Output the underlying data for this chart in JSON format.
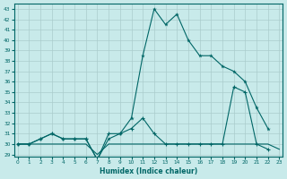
{
  "title": "",
  "xlabel": "Humidex (Indice chaleur)",
  "ylabel": "",
  "background_color": "#c8eaea",
  "line_color": "#006666",
  "grid_color": "#aacccc",
  "x_values": [
    0,
    1,
    2,
    3,
    4,
    5,
    6,
    7,
    8,
    9,
    10,
    11,
    12,
    13,
    14,
    15,
    16,
    17,
    18,
    19,
    20,
    21,
    22,
    23
  ],
  "series1": [
    30.0,
    30.0,
    30.5,
    31.0,
    30.5,
    30.5,
    30.5,
    28.5,
    30.5,
    31.0,
    32.5,
    38.5,
    43.0,
    41.5,
    42.5,
    40.0,
    38.5,
    38.5,
    37.5,
    37.0,
    36.0,
    33.5,
    31.5,
    null
  ],
  "series2": [
    30.0,
    30.0,
    30.5,
    31.0,
    30.5,
    30.5,
    30.5,
    28.5,
    31.0,
    31.0,
    31.5,
    32.5,
    31.0,
    30.0,
    30.0,
    30.0,
    30.0,
    30.0,
    30.0,
    35.5,
    35.0,
    30.0,
    29.5,
    null
  ],
  "series3": [
    30.0,
    30.0,
    30.0,
    30.0,
    30.0,
    30.0,
    30.0,
    29.0,
    30.0,
    30.0,
    30.0,
    30.0,
    30.0,
    30.0,
    30.0,
    30.0,
    30.0,
    30.0,
    30.0,
    30.0,
    30.0,
    30.0,
    30.0,
    29.5
  ],
  "ylim": [
    28.8,
    43.5
  ],
  "xlim": [
    -0.3,
    23.3
  ],
  "yticks": [
    29,
    30,
    31,
    32,
    33,
    34,
    35,
    36,
    37,
    38,
    39,
    40,
    41,
    42,
    43
  ],
  "xticks": [
    0,
    1,
    2,
    3,
    4,
    5,
    6,
    7,
    8,
    9,
    10,
    11,
    12,
    13,
    14,
    15,
    16,
    17,
    18,
    19,
    20,
    21,
    22,
    23
  ]
}
